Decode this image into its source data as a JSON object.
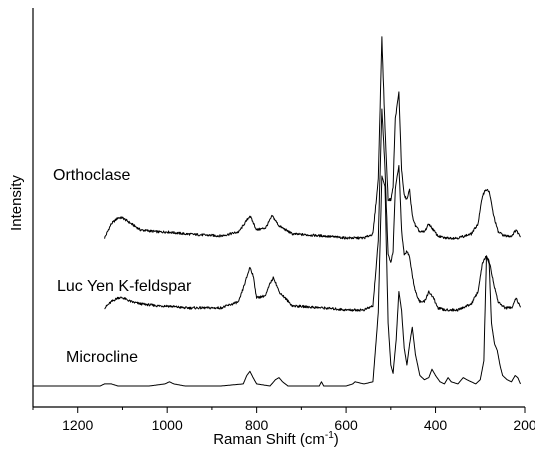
{
  "chart_data": {
    "type": "line",
    "title": "",
    "xlabel": "Raman Shift (cm",
    "xlabel_sup": "-1",
    "xlabel_end": ")",
    "ylabel": "Intensity",
    "xlim": [
      1300,
      200
    ],
    "x_reversed": true,
    "y_ticks_shown": false,
    "grid": false,
    "legend": "none",
    "line_color": "#000000",
    "x_ticks": [
      "1200",
      "1000",
      "800",
      "600",
      "400",
      "200"
    ],
    "x_tick_values": [
      1200,
      1000,
      800,
      600,
      400,
      200
    ],
    "series": [
      {
        "name": "Orthoclase",
        "x": [
          1140,
          1125,
          1110,
          1100,
          1080,
          1060,
          1020,
          1000,
          960,
          880,
          840,
          815,
          800,
          780,
          765,
          750,
          720,
          650,
          600,
          560,
          540,
          528,
          520,
          513,
          506,
          500,
          495,
          490,
          482,
          476,
          470,
          464,
          458,
          452,
          445,
          435,
          425,
          415,
          405,
          395,
          380,
          350,
          320,
          305,
          295,
          288,
          280,
          270,
          260,
          245,
          230,
          220,
          214,
          210
        ],
        "y": [
          0.01,
          0.08,
          0.11,
          0.11,
          0.08,
          0.05,
          0.04,
          0.04,
          0.03,
          0.02,
          0.04,
          0.12,
          0.05,
          0.06,
          0.12,
          0.07,
          0.03,
          0.02,
          0.01,
          0.01,
          0.03,
          0.3,
          1.0,
          0.55,
          0.2,
          0.2,
          0.26,
          0.6,
          0.73,
          0.35,
          0.22,
          0.2,
          0.25,
          0.12,
          0.07,
          0.04,
          0.04,
          0.08,
          0.05,
          0.02,
          0.01,
          0.01,
          0.03,
          0.08,
          0.22,
          0.25,
          0.24,
          0.12,
          0.04,
          0.02,
          0.02,
          0.05,
          0.03,
          0.02
        ]
      },
      {
        "name": "Luc Yen K-feldspar",
        "x": [
          1140,
          1125,
          1110,
          1100,
          1080,
          1060,
          1020,
          1000,
          960,
          880,
          840,
          825,
          815,
          808,
          800,
          780,
          770,
          762,
          750,
          720,
          650,
          600,
          560,
          540,
          528,
          520,
          513,
          506,
          500,
          495,
          490,
          482,
          476,
          470,
          464,
          458,
          452,
          445,
          435,
          425,
          415,
          405,
          395,
          380,
          350,
          320,
          305,
          295,
          288,
          280,
          270,
          260,
          245,
          230,
          220,
          214,
          210
        ],
        "y": [
          0.02,
          0.05,
          0.07,
          0.07,
          0.05,
          0.04,
          0.03,
          0.03,
          0.02,
          0.02,
          0.05,
          0.15,
          0.22,
          0.18,
          0.07,
          0.08,
          0.14,
          0.17,
          0.1,
          0.03,
          0.02,
          0.01,
          0.01,
          0.03,
          0.35,
          1.0,
          0.7,
          0.28,
          0.24,
          0.3,
          0.6,
          0.72,
          0.4,
          0.28,
          0.3,
          0.27,
          0.18,
          0.1,
          0.05,
          0.05,
          0.1,
          0.07,
          0.02,
          0.01,
          0.01,
          0.04,
          0.1,
          0.24,
          0.27,
          0.25,
          0.14,
          0.05,
          0.02,
          0.02,
          0.07,
          0.04,
          0.02
        ]
      },
      {
        "name": "Microcline",
        "x": [
          1300,
          1150,
          1140,
          1125,
          1110,
          1080,
          1040,
          1005,
          995,
          985,
          960,
          880,
          830,
          822,
          815,
          808,
          800,
          770,
          758,
          750,
          742,
          730,
          700,
          660,
          655,
          650,
          600,
          585,
          580,
          560,
          540,
          528,
          520,
          513,
          506,
          500,
          495,
          488,
          482,
          476,
          470,
          464,
          458,
          452,
          445,
          435,
          425,
          415,
          408,
          400,
          390,
          380,
          372,
          365,
          350,
          338,
          330,
          310,
          300,
          292,
          286,
          280,
          275,
          268,
          262,
          256,
          250,
          240,
          230,
          222,
          216,
          210
        ],
        "y": [
          0.0,
          0.0,
          0.01,
          0.01,
          0.0,
          0.0,
          0.0,
          0.01,
          0.02,
          0.01,
          0.0,
          0.0,
          0.01,
          0.05,
          0.07,
          0.04,
          0.01,
          0.0,
          0.03,
          0.04,
          0.02,
          0.0,
          0.0,
          0.0,
          0.02,
          0.0,
          0.0,
          0.01,
          0.02,
          0.01,
          0.02,
          0.35,
          1.0,
          0.95,
          0.3,
          0.1,
          0.06,
          0.22,
          0.45,
          0.36,
          0.18,
          0.1,
          0.2,
          0.28,
          0.15,
          0.05,
          0.03,
          0.04,
          0.08,
          0.05,
          0.02,
          0.01,
          0.04,
          0.02,
          0.01,
          0.04,
          0.03,
          0.01,
          0.03,
          0.12,
          0.62,
          0.58,
          0.3,
          0.2,
          0.17,
          0.1,
          0.05,
          0.03,
          0.02,
          0.05,
          0.04,
          0.01
        ]
      }
    ]
  }
}
